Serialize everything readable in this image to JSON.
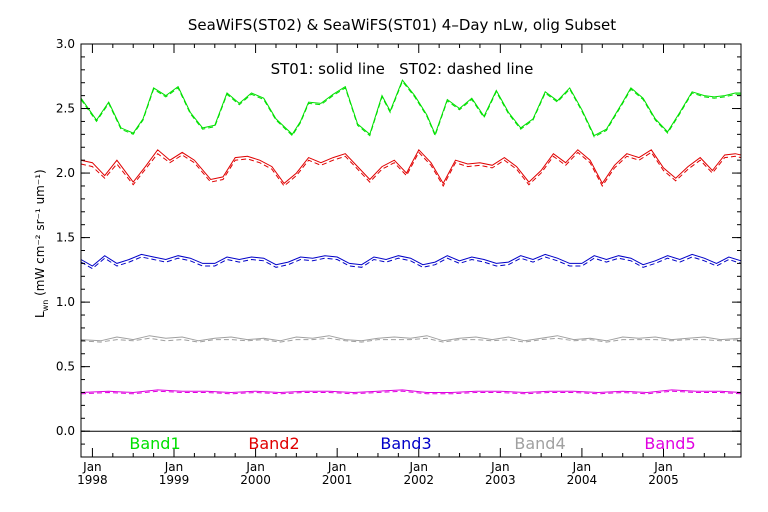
{
  "chart_data": {
    "type": "line",
    "title": "SeaWiFS(ST02) & SeaWiFS(ST01) 4–Day nLw, olig Subset",
    "annotation": "ST01: solid line   ST02: dashed line",
    "ylabel": "L_wn (mW cm⁻² sr⁻¹ um⁻¹)",
    "ylabel_main": "L",
    "ylabel_sub": "wn",
    "ylabel_rest": " (mW cm⁻² sr⁻¹ um⁻¹)",
    "xlabel": "",
    "xlim": [
      1997.86,
      2005.95
    ],
    "ylim": [
      -0.2,
      3.0
    ],
    "yticks": [
      {
        "value": 0.0,
        "label": "0.0"
      },
      {
        "value": 0.5,
        "label": "0.5"
      },
      {
        "value": 1.0,
        "label": "1.0"
      },
      {
        "value": 1.5,
        "label": "1.5"
      },
      {
        "value": 2.0,
        "label": "2.0"
      },
      {
        "value": 2.5,
        "label": "2.5"
      },
      {
        "value": 3.0,
        "label": "3.0"
      }
    ],
    "xticks": [
      {
        "value": 1998,
        "month": "Jan",
        "year": "1998"
      },
      {
        "value": 1999,
        "month": "Jan",
        "year": "1999"
      },
      {
        "value": 2000,
        "month": "Jan",
        "year": "2000"
      },
      {
        "value": 2001,
        "month": "Jan",
        "year": "2001"
      },
      {
        "value": 2002,
        "month": "Jan",
        "year": "2002"
      },
      {
        "value": 2003,
        "month": "Jan",
        "year": "2003"
      },
      {
        "value": 2004,
        "month": "Jan",
        "year": "2004"
      },
      {
        "value": 2005,
        "month": "Jan",
        "year": "2005"
      }
    ],
    "grid": false,
    "legend": "bottom",
    "series": [
      {
        "name": "Band1",
        "color": "#00e000",
        "x": [
          1997.86,
          1998.05,
          1998.2,
          1998.35,
          1998.5,
          1998.62,
          1998.75,
          1998.9,
          1999.05,
          1999.2,
          1999.35,
          1999.5,
          1999.65,
          1999.8,
          1999.95,
          2000.1,
          2000.25,
          2000.45,
          2000.55,
          2000.65,
          2000.8,
          2000.95,
          2001.1,
          2001.25,
          2001.4,
          2001.55,
          2001.65,
          2001.8,
          2001.95,
          2002.1,
          2002.2,
          2002.35,
          2002.5,
          2002.65,
          2002.8,
          2002.95,
          2003.1,
          2003.25,
          2003.4,
          2003.55,
          2003.7,
          2003.85,
          2004.0,
          2004.15,
          2004.3,
          2004.5,
          2004.6,
          2004.75,
          2004.9,
          2005.05,
          2005.2,
          2005.35,
          2005.5,
          2005.62,
          2005.75,
          2005.88,
          2005.95
        ],
        "st01": [
          2.58,
          2.41,
          2.55,
          2.35,
          2.31,
          2.42,
          2.66,
          2.6,
          2.67,
          2.47,
          2.35,
          2.37,
          2.62,
          2.54,
          2.62,
          2.58,
          2.42,
          2.3,
          2.4,
          2.55,
          2.54,
          2.61,
          2.67,
          2.38,
          2.3,
          2.6,
          2.48,
          2.72,
          2.6,
          2.45,
          2.3,
          2.57,
          2.5,
          2.58,
          2.44,
          2.64,
          2.47,
          2.35,
          2.42,
          2.63,
          2.56,
          2.66,
          2.49,
          2.29,
          2.34,
          2.55,
          2.66,
          2.58,
          2.42,
          2.32,
          2.47,
          2.63,
          2.6,
          2.59,
          2.6,
          2.62,
          2.62
        ],
        "st02": [
          2.57,
          2.4,
          2.54,
          2.34,
          2.3,
          2.41,
          2.65,
          2.59,
          2.66,
          2.46,
          2.34,
          2.36,
          2.61,
          2.53,
          2.61,
          2.57,
          2.41,
          2.29,
          2.39,
          2.54,
          2.53,
          2.6,
          2.66,
          2.37,
          2.29,
          2.59,
          2.47,
          2.71,
          2.59,
          2.44,
          2.29,
          2.56,
          2.49,
          2.57,
          2.43,
          2.63,
          2.46,
          2.34,
          2.41,
          2.62,
          2.55,
          2.65,
          2.48,
          2.28,
          2.33,
          2.54,
          2.65,
          2.57,
          2.41,
          2.31,
          2.46,
          2.62,
          2.59,
          2.58,
          2.59,
          2.61,
          2.61
        ]
      },
      {
        "name": "Band2",
        "color": "#e00000",
        "x": [
          1997.86,
          1998.0,
          1998.15,
          1998.3,
          1998.5,
          1998.65,
          1998.8,
          1998.95,
          1999.1,
          1999.25,
          1999.45,
          1999.6,
          1999.75,
          1999.9,
          2000.05,
          2000.2,
          2000.35,
          2000.5,
          2000.65,
          2000.8,
          2000.95,
          2001.1,
          2001.25,
          2001.4,
          2001.55,
          2001.7,
          2001.85,
          2002.0,
          2002.15,
          2002.3,
          2002.45,
          2002.6,
          2002.75,
          2002.9,
          2003.05,
          2003.2,
          2003.35,
          2003.5,
          2003.65,
          2003.8,
          2003.95,
          2004.1,
          2004.25,
          2004.4,
          2004.55,
          2004.7,
          2004.85,
          2005.0,
          2005.15,
          2005.3,
          2005.45,
          2005.6,
          2005.75,
          2005.88,
          2005.95
        ],
        "st01": [
          2.1,
          2.08,
          1.98,
          2.1,
          1.93,
          2.05,
          2.18,
          2.1,
          2.16,
          2.1,
          1.95,
          1.97,
          2.12,
          2.13,
          2.1,
          2.05,
          1.92,
          2.0,
          2.12,
          2.08,
          2.12,
          2.15,
          2.05,
          1.95,
          2.05,
          2.1,
          2.0,
          2.18,
          2.08,
          1.92,
          2.1,
          2.07,
          2.08,
          2.06,
          2.12,
          2.05,
          1.93,
          2.02,
          2.15,
          2.08,
          2.18,
          2.1,
          1.92,
          2.06,
          2.15,
          2.12,
          2.18,
          2.04,
          1.96,
          2.05,
          2.12,
          2.02,
          2.14,
          2.15,
          2.14
        ],
        "st02": [
          2.07,
          2.05,
          1.96,
          2.07,
          1.91,
          2.03,
          2.15,
          2.08,
          2.14,
          2.08,
          1.93,
          1.95,
          2.1,
          2.11,
          2.08,
          2.03,
          1.9,
          1.98,
          2.1,
          2.06,
          2.1,
          2.13,
          2.03,
          1.93,
          2.03,
          2.08,
          1.98,
          2.16,
          2.06,
          1.9,
          2.08,
          2.05,
          2.06,
          2.04,
          2.1,
          2.03,
          1.91,
          2.0,
          2.13,
          2.06,
          2.16,
          2.08,
          1.9,
          2.04,
          2.13,
          2.1,
          2.16,
          2.02,
          1.94,
          2.03,
          2.1,
          2.0,
          2.12,
          2.13,
          2.12
        ]
      },
      {
        "name": "Band3",
        "color": "#0000c8",
        "x": [
          1997.86,
          1998.0,
          1998.15,
          1998.3,
          1998.45,
          1998.6,
          1998.75,
          1998.9,
          1999.05,
          1999.2,
          1999.35,
          1999.5,
          1999.65,
          1999.8,
          1999.95,
          2000.1,
          2000.25,
          2000.4,
          2000.55,
          2000.7,
          2000.85,
          2001.0,
          2001.15,
          2001.3,
          2001.45,
          2001.6,
          2001.75,
          2001.9,
          2002.05,
          2002.2,
          2002.35,
          2002.5,
          2002.65,
          2002.8,
          2002.95,
          2003.1,
          2003.25,
          2003.4,
          2003.55,
          2003.7,
          2003.85,
          2004.0,
          2004.15,
          2004.3,
          2004.45,
          2004.6,
          2004.75,
          2004.9,
          2005.05,
          2005.2,
          2005.35,
          2005.5,
          2005.65,
          2005.8,
          2005.95
        ],
        "st01": [
          1.33,
          1.28,
          1.36,
          1.3,
          1.33,
          1.37,
          1.35,
          1.33,
          1.36,
          1.34,
          1.3,
          1.3,
          1.35,
          1.33,
          1.35,
          1.34,
          1.29,
          1.31,
          1.35,
          1.34,
          1.36,
          1.35,
          1.3,
          1.29,
          1.35,
          1.33,
          1.36,
          1.34,
          1.29,
          1.31,
          1.36,
          1.32,
          1.35,
          1.33,
          1.3,
          1.31,
          1.36,
          1.33,
          1.37,
          1.34,
          1.3,
          1.3,
          1.36,
          1.33,
          1.36,
          1.34,
          1.29,
          1.32,
          1.36,
          1.33,
          1.37,
          1.34,
          1.3,
          1.35,
          1.32
        ],
        "st02": [
          1.31,
          1.26,
          1.34,
          1.28,
          1.31,
          1.35,
          1.33,
          1.31,
          1.34,
          1.32,
          1.28,
          1.28,
          1.33,
          1.31,
          1.33,
          1.32,
          1.27,
          1.29,
          1.33,
          1.32,
          1.34,
          1.33,
          1.28,
          1.27,
          1.33,
          1.31,
          1.34,
          1.32,
          1.27,
          1.29,
          1.34,
          1.3,
          1.33,
          1.31,
          1.28,
          1.29,
          1.34,
          1.31,
          1.35,
          1.32,
          1.28,
          1.28,
          1.34,
          1.31,
          1.34,
          1.32,
          1.27,
          1.3,
          1.34,
          1.31,
          1.35,
          1.32,
          1.28,
          1.33,
          1.3
        ]
      },
      {
        "name": "Band4",
        "color": "#a0a0a0",
        "x": [
          1997.86,
          1998.1,
          1998.3,
          1998.5,
          1998.7,
          1998.9,
          1999.1,
          1999.3,
          1999.5,
          1999.7,
          1999.9,
          2000.1,
          2000.3,
          2000.5,
          2000.7,
          2000.9,
          2001.1,
          2001.3,
          2001.5,
          2001.7,
          2001.9,
          2002.1,
          2002.3,
          2002.5,
          2002.7,
          2002.9,
          2003.1,
          2003.3,
          2003.5,
          2003.7,
          2003.9,
          2004.1,
          2004.3,
          2004.5,
          2004.7,
          2004.9,
          2005.1,
          2005.3,
          2005.5,
          2005.7,
          2005.95
        ],
        "st01": [
          0.71,
          0.7,
          0.73,
          0.71,
          0.74,
          0.72,
          0.73,
          0.7,
          0.72,
          0.73,
          0.71,
          0.72,
          0.7,
          0.73,
          0.72,
          0.74,
          0.71,
          0.7,
          0.72,
          0.73,
          0.72,
          0.74,
          0.7,
          0.72,
          0.73,
          0.71,
          0.73,
          0.7,
          0.72,
          0.74,
          0.71,
          0.72,
          0.7,
          0.73,
          0.72,
          0.73,
          0.71,
          0.72,
          0.73,
          0.71,
          0.72
        ],
        "st02": [
          0.7,
          0.69,
          0.71,
          0.7,
          0.72,
          0.7,
          0.71,
          0.69,
          0.71,
          0.71,
          0.7,
          0.71,
          0.69,
          0.71,
          0.71,
          0.72,
          0.7,
          0.69,
          0.71,
          0.71,
          0.71,
          0.72,
          0.69,
          0.71,
          0.71,
          0.7,
          0.71,
          0.69,
          0.71,
          0.72,
          0.7,
          0.71,
          0.69,
          0.71,
          0.71,
          0.71,
          0.7,
          0.71,
          0.71,
          0.7,
          0.71
        ]
      },
      {
        "name": "Band5",
        "color": "#e000e0",
        "x": [
          1997.86,
          1998.2,
          1998.5,
          1998.8,
          1999.1,
          1999.4,
          1999.7,
          2000.0,
          2000.3,
          2000.6,
          2000.9,
          2001.2,
          2001.5,
          2001.8,
          2002.1,
          2002.4,
          2002.7,
          2003.0,
          2003.3,
          2003.6,
          2003.9,
          2004.2,
          2004.5,
          2004.8,
          2005.1,
          2005.4,
          2005.7,
          2005.95
        ],
        "st01": [
          0.3,
          0.31,
          0.3,
          0.32,
          0.31,
          0.31,
          0.3,
          0.31,
          0.3,
          0.31,
          0.31,
          0.3,
          0.31,
          0.32,
          0.3,
          0.3,
          0.31,
          0.31,
          0.3,
          0.31,
          0.31,
          0.3,
          0.31,
          0.3,
          0.32,
          0.31,
          0.31,
          0.3
        ],
        "st02": [
          0.29,
          0.3,
          0.29,
          0.31,
          0.3,
          0.3,
          0.29,
          0.3,
          0.29,
          0.3,
          0.3,
          0.29,
          0.3,
          0.31,
          0.29,
          0.29,
          0.3,
          0.3,
          0.29,
          0.3,
          0.3,
          0.29,
          0.3,
          0.29,
          0.31,
          0.3,
          0.3,
          0.29
        ]
      }
    ]
  }
}
